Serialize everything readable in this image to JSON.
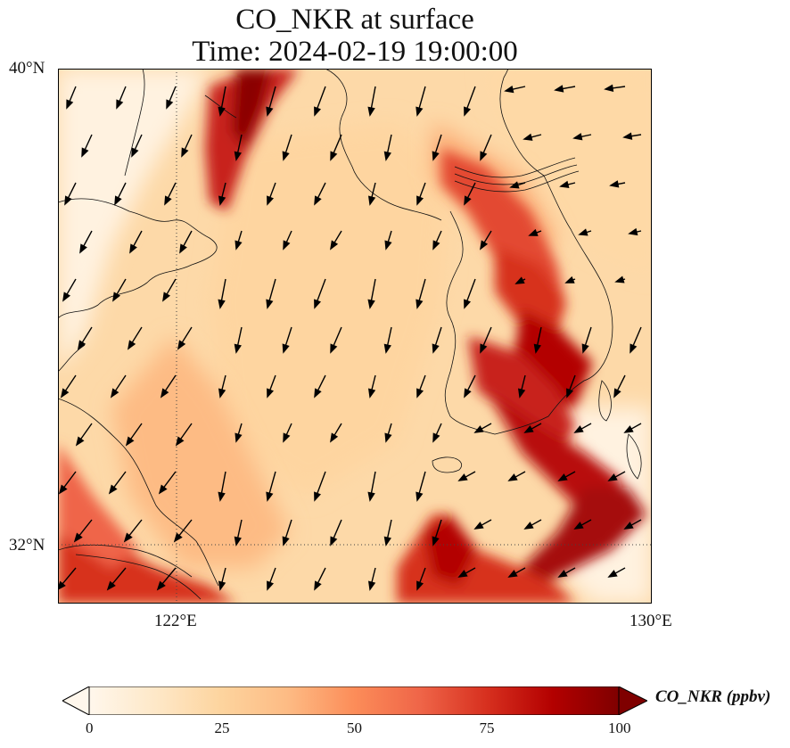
{
  "title": {
    "line1": "CO_NKR at surface",
    "line2": "Time: 2024-02-19 19:00:00"
  },
  "axes": {
    "lat_ticks": [
      "40°N",
      "32°N"
    ],
    "lon_ticks": [
      "122°E",
      "130°E"
    ],
    "extent": {
      "lon": [
        120,
        130
      ],
      "lat": [
        31,
        40
      ]
    }
  },
  "colorbar": {
    "label": "CO_NKR (ppbv)",
    "ticks": [
      "0",
      "25",
      "50",
      "75",
      "100"
    ],
    "range": [
      0,
      100
    ],
    "colormap": "OrRd",
    "stops": [
      "#fff7ec",
      "#fee8c8",
      "#fdd49e",
      "#fdbb84",
      "#fc8d59",
      "#ef6548",
      "#d7301f",
      "#b30000",
      "#7f0000"
    ],
    "extend": "both"
  },
  "layers": {
    "concentration_field": "CO_NKR",
    "wind_vectors": "wind",
    "coastlines": "coastline",
    "gridlines": "dotted"
  }
}
